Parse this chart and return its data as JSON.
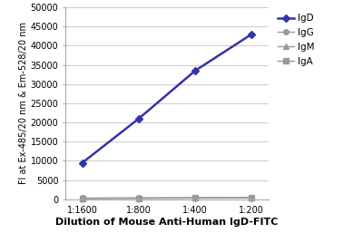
{
  "x_labels": [
    "1:1600",
    "1:800",
    "1:400",
    "1:200"
  ],
  "x_values": [
    1,
    2,
    3,
    4
  ],
  "series_order": [
    "IgD",
    "IgG",
    "IgM",
    "IgA"
  ],
  "series": {
    "IgD": {
      "values": [
        9500,
        21000,
        33500,
        43000
      ],
      "color": "#3333aa",
      "marker": "D",
      "markersize": 4,
      "linewidth": 1.8,
      "zorder": 3
    },
    "IgG": {
      "values": [
        300,
        350,
        400,
        450
      ],
      "color": "#999999",
      "marker": "o",
      "markersize": 4,
      "linewidth": 1.0,
      "zorder": 2
    },
    "IgM": {
      "values": [
        250,
        300,
        350,
        400
      ],
      "color": "#999999",
      "marker": "^",
      "markersize": 4,
      "linewidth": 1.0,
      "zorder": 2
    },
    "IgA": {
      "values": [
        200,
        250,
        300,
        350
      ],
      "color": "#999999",
      "marker": "s",
      "markersize": 4,
      "linewidth": 1.0,
      "zorder": 2
    }
  },
  "ylabel": "Fl at Ex-485/20 nm & Em-528/20 nm",
  "xlabel": "Dilution of Mouse Anti-Human IgD-FITC",
  "ylim": [
    0,
    50000
  ],
  "yticks": [
    0,
    5000,
    10000,
    15000,
    20000,
    25000,
    30000,
    35000,
    40000,
    45000,
    50000
  ],
  "ylabel_fontsize": 7.0,
  "xlabel_fontsize": 8.0,
  "legend_fontsize": 7.5,
  "tick_fontsize": 7.0,
  "background_color": "#ffffff",
  "grid_color": "#cccccc",
  "spine_color": "#aaaaaa"
}
